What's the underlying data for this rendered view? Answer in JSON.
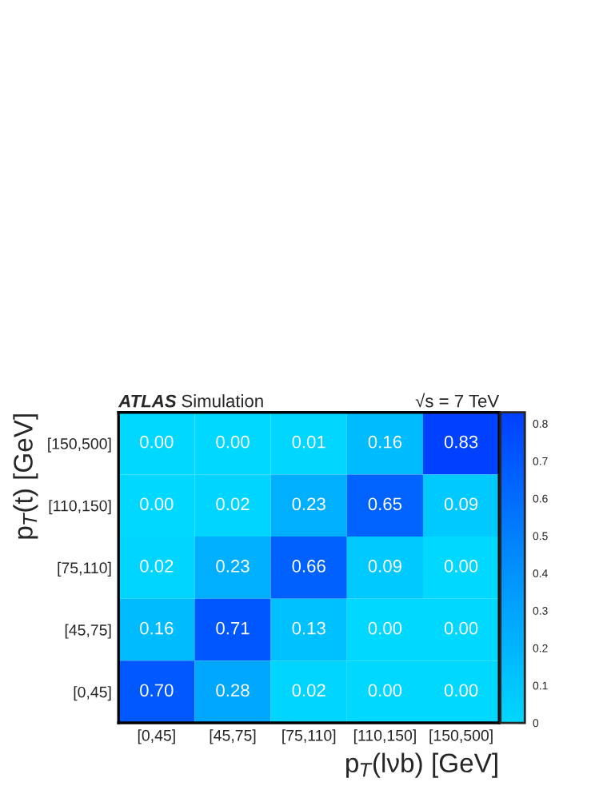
{
  "chart_data": {
    "type": "heatmap",
    "title": "ATLAS Simulation",
    "annotations": [
      "√s = 7 TeV"
    ],
    "xlabel": "p$_{T}$(lνb) [GeV]",
    "ylabel": "p$_{T}$(t) [GeV]",
    "categories": [
      "[0,45]",
      "[45,75]",
      "[75,110]",
      "[110,150]",
      "[150,500]"
    ],
    "y_categories": [
      "[150,500]",
      "[110,150]",
      "[75,110]",
      "[45,75]",
      "[0,45]"
    ],
    "cells": [
      [
        0.0,
        0.0,
        0.01,
        0.16,
        0.83
      ],
      [
        0.0,
        0.02,
        0.23,
        0.65,
        0.09
      ],
      [
        0.02,
        0.23,
        0.66,
        0.09,
        0.0
      ],
      [
        0.16,
        0.71,
        0.13,
        0.0,
        0.0
      ],
      [
        0.7,
        0.28,
        0.02,
        0.0,
        0.0
      ]
    ],
    "cell_labels": [
      [
        "0.00",
        "0.00",
        "0.01",
        "0.16",
        "0.83"
      ],
      [
        "0.00",
        "0.02",
        "0.23",
        "0.65",
        "0.09"
      ],
      [
        "0.02",
        "0.23",
        "0.66",
        "0.09",
        "0.00"
      ],
      [
        "0.16",
        "0.71",
        "0.13",
        "0.00",
        "0.00"
      ],
      [
        "0.70",
        "0.28",
        "0.02",
        "0.00",
        "0.00"
      ]
    ],
    "clim": [
      0,
      0.83
    ],
    "cticks": [
      0,
      0.1,
      0.2,
      0.3,
      0.4,
      0.5,
      0.6,
      0.7,
      0.8
    ]
  }
}
